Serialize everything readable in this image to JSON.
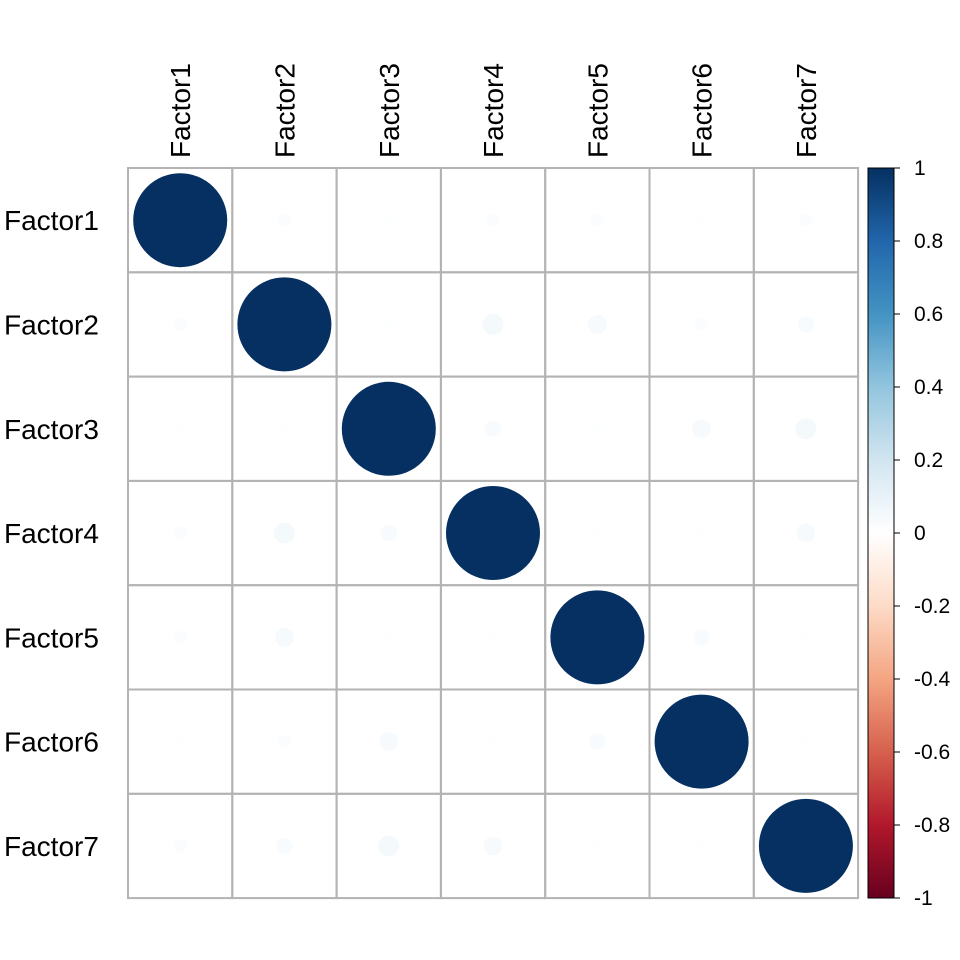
{
  "chart_data": {
    "type": "heatmap",
    "title": "",
    "rows": [
      "Factor1",
      "Factor2",
      "Factor3",
      "Factor4",
      "Factor5",
      "Factor6",
      "Factor7"
    ],
    "columns": [
      "Factor1",
      "Factor2",
      "Factor3",
      "Factor4",
      "Factor5",
      "Factor6",
      "Factor7"
    ],
    "values": [
      [
        1.0,
        0.02,
        0.01,
        0.02,
        0.02,
        0.01,
        0.02
      ],
      [
        0.02,
        1.0,
        0.01,
        0.05,
        0.04,
        0.02,
        0.03
      ],
      [
        0.01,
        0.01,
        1.0,
        0.03,
        0.01,
        0.04,
        0.05
      ],
      [
        0.02,
        0.05,
        0.03,
        1.0,
        0.01,
        0.01,
        0.04
      ],
      [
        0.02,
        0.04,
        0.01,
        0.01,
        1.0,
        0.03,
        0.01
      ],
      [
        0.01,
        0.02,
        0.04,
        0.01,
        0.03,
        1.0,
        0.01
      ],
      [
        0.02,
        0.03,
        0.05,
        0.04,
        0.01,
        0.01,
        1.0
      ]
    ],
    "colorbar": {
      "range": [
        -1,
        1
      ],
      "ticks": [
        "1",
        "0.8",
        "0.6",
        "0.4",
        "0.2",
        "0",
        "-0.2",
        "-0.4",
        "-0.6",
        "-0.8",
        "-1"
      ],
      "colors": [
        "#67001F",
        "#B2182B",
        "#D6604D",
        "#F4A582",
        "#FDDBC7",
        "#FFFFFF",
        "#D1E5F0",
        "#92C5DE",
        "#4393C3",
        "#2166AC",
        "#053061"
      ]
    },
    "grid": true,
    "legend_position": "right"
  }
}
